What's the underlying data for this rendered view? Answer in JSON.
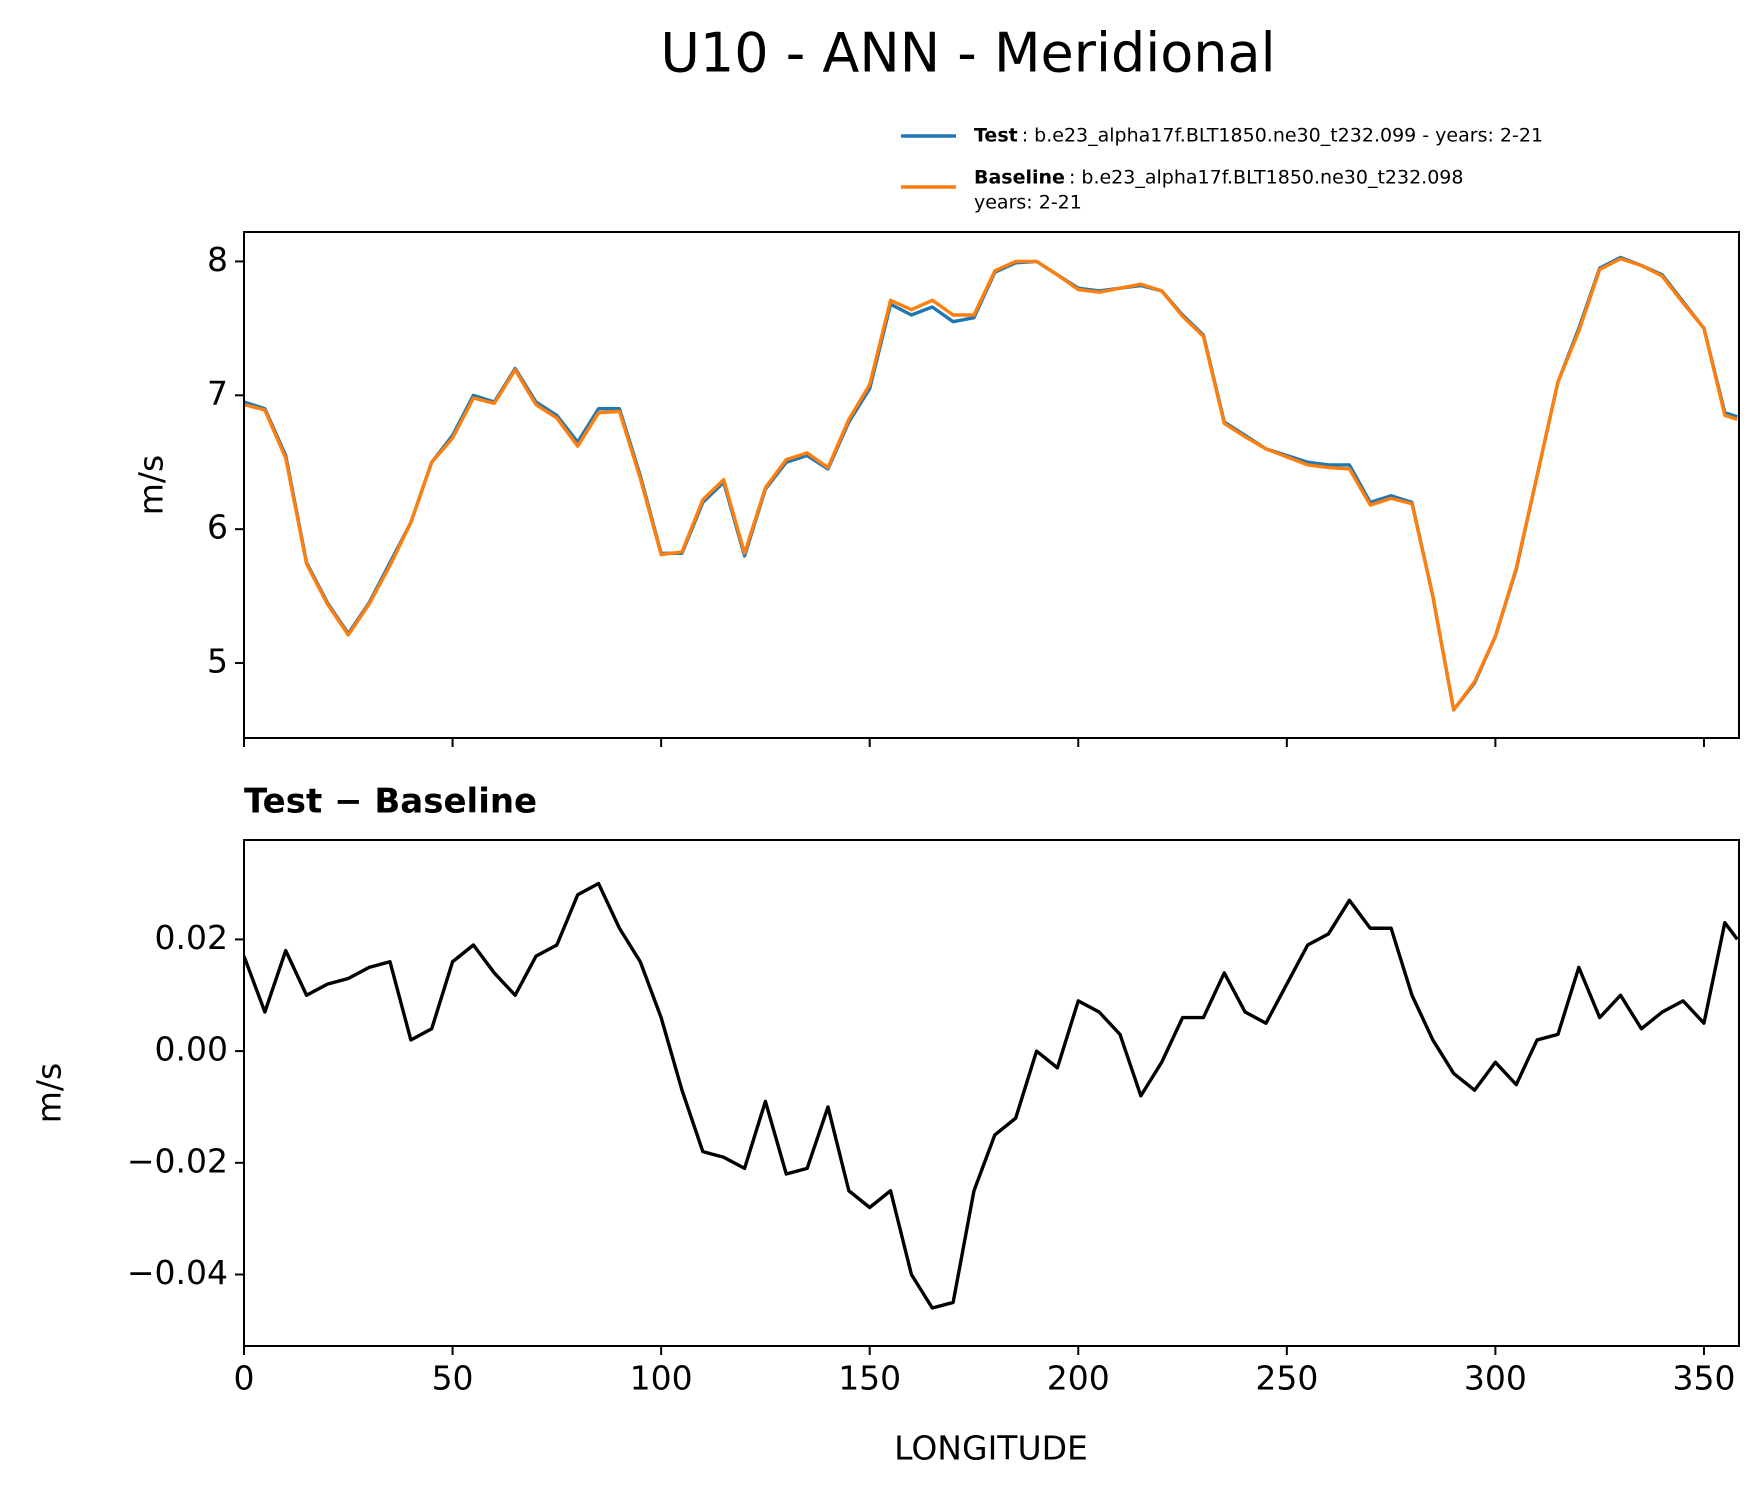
{
  "chart_data": [
    {
      "type": "line",
      "title": "U10 - ANN - Meridional",
      "ylabel": "m/s",
      "x": [
        0,
        5,
        10,
        15,
        20,
        25,
        30,
        35,
        40,
        45,
        50,
        55,
        60,
        65,
        70,
        75,
        80,
        85,
        90,
        95,
        100,
        105,
        110,
        115,
        120,
        125,
        130,
        135,
        140,
        145,
        150,
        155,
        160,
        165,
        170,
        175,
        180,
        185,
        190,
        195,
        200,
        205,
        210,
        215,
        220,
        225,
        230,
        235,
        240,
        245,
        250,
        255,
        260,
        265,
        270,
        275,
        280,
        285,
        290,
        295,
        300,
        305,
        310,
        315,
        320,
        325,
        330,
        335,
        340,
        345,
        350,
        355,
        358
      ],
      "series": [
        {
          "name": "Test",
          "legend_text": [
            ": b.e23_alpha17f.BLT1850.ne30_t232.099 - years: 2-21"
          ],
          "color": "#1f77b4",
          "values": [
            6.95,
            6.9,
            6.55,
            5.75,
            5.45,
            5.22,
            5.45,
            5.75,
            6.05,
            6.5,
            6.7,
            7.0,
            6.95,
            7.2,
            6.95,
            6.85,
            6.65,
            6.9,
            6.9,
            6.4,
            5.82,
            5.82,
            6.2,
            6.35,
            5.8,
            6.3,
            6.5,
            6.55,
            6.45,
            6.8,
            7.05,
            7.68,
            7.6,
            7.66,
            7.55,
            7.58,
            7.92,
            7.99,
            8.0,
            7.9,
            7.8,
            7.78,
            7.8,
            7.82,
            7.78,
            7.6,
            7.45,
            6.8,
            6.7,
            6.6,
            6.55,
            6.5,
            6.48,
            6.48,
            6.2,
            6.25,
            6.2,
            5.5,
            4.65,
            4.85,
            5.2,
            5.7,
            6.4,
            7.1,
            7.5,
            7.95,
            8.03,
            7.97,
            7.9,
            7.7,
            7.5,
            6.87,
            6.84
          ]
        },
        {
          "name": "Baseline",
          "legend_text": [
            ": b.e23_alpha17f.BLT1850.ne30_t232.098",
            "years: 2-21"
          ],
          "color": "#ff7f0e",
          "values": [
            6.93,
            6.89,
            6.53,
            5.74,
            5.44,
            5.21,
            5.44,
            5.73,
            6.05,
            6.5,
            6.68,
            6.98,
            6.94,
            7.19,
            6.93,
            6.83,
            6.62,
            6.87,
            6.88,
            6.38,
            5.81,
            5.83,
            6.22,
            6.37,
            5.82,
            6.31,
            6.52,
            6.57,
            6.46,
            6.82,
            7.08,
            7.71,
            7.64,
            7.71,
            7.6,
            7.6,
            7.93,
            8.0,
            8.0,
            7.9,
            7.79,
            7.77,
            7.8,
            7.83,
            7.78,
            7.59,
            7.44,
            6.79,
            6.69,
            6.6,
            6.54,
            6.48,
            6.46,
            6.45,
            6.18,
            6.23,
            6.19,
            5.5,
            4.65,
            4.86,
            5.2,
            5.71,
            6.4,
            7.1,
            7.48,
            7.94,
            8.02,
            7.97,
            7.89,
            7.69,
            7.5,
            6.85,
            6.82
          ]
        }
      ],
      "xlim": [
        0,
        358.4
      ],
      "xticks": [
        0,
        50,
        100,
        150,
        200,
        250,
        300,
        350
      ],
      "ylim": [
        4.44,
        8.22
      ],
      "yticks": [
        5,
        6,
        7,
        8
      ]
    },
    {
      "type": "line",
      "subtitle": "Test − Baseline",
      "ylabel": "m/s",
      "xlabel": "LONGITUDE",
      "x": [
        0,
        5,
        10,
        15,
        20,
        25,
        30,
        35,
        40,
        45,
        50,
        55,
        60,
        65,
        70,
        75,
        80,
        85,
        90,
        95,
        100,
        105,
        110,
        115,
        120,
        125,
        130,
        135,
        140,
        145,
        150,
        155,
        160,
        165,
        170,
        175,
        180,
        185,
        190,
        195,
        200,
        205,
        210,
        215,
        220,
        225,
        230,
        235,
        240,
        245,
        250,
        255,
        260,
        265,
        270,
        275,
        280,
        285,
        290,
        295,
        300,
        305,
        310,
        315,
        320,
        325,
        330,
        335,
        340,
        345,
        350,
        355,
        358
      ],
      "series": [
        {
          "color": "#000000",
          "values": [
            0.017,
            0.007,
            0.018,
            0.01,
            0.012,
            0.013,
            0.015,
            0.016,
            0.002,
            0.004,
            0.016,
            0.019,
            0.014,
            0.01,
            0.017,
            0.019,
            0.028,
            0.03,
            0.022,
            0.016,
            0.006,
            -0.007,
            -0.018,
            -0.019,
            -0.021,
            -0.009,
            -0.022,
            -0.021,
            -0.01,
            -0.025,
            -0.028,
            -0.025,
            -0.04,
            -0.046,
            -0.045,
            -0.025,
            -0.015,
            -0.012,
            0.0,
            -0.003,
            0.009,
            0.007,
            0.003,
            -0.008,
            -0.002,
            0.006,
            0.006,
            0.014,
            0.007,
            0.005,
            0.012,
            0.019,
            0.021,
            0.027,
            0.022,
            0.022,
            0.01,
            0.002,
            -0.004,
            -0.007,
            -0.002,
            -0.006,
            0.002,
            0.003,
            0.015,
            0.006,
            0.01,
            0.004,
            0.007,
            0.009,
            0.005,
            0.023,
            0.02
          ]
        }
      ],
      "xlim": [
        0,
        358.4
      ],
      "xticks": [
        0,
        50,
        100,
        150,
        200,
        250,
        300,
        350
      ],
      "ylim": [
        -0.0528,
        0.0378
      ],
      "yticks": [
        {
          "value": -0.04,
          "label": "−0.04"
        },
        {
          "value": -0.02,
          "label": "−0.02"
        },
        {
          "value": 0,
          "label": "0.00"
        },
        {
          "value": 0.02,
          "label": "0.02"
        }
      ]
    }
  ]
}
